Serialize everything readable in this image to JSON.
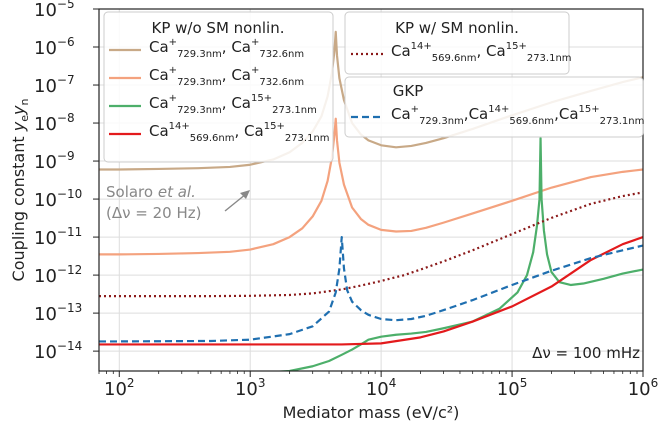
{
  "chart_data": {
    "type": "line",
    "xlabel": "Mediator mass (eV/c²)",
    "ylabel_main": "Coupling constant ",
    "ylabel_math": "y",
    "ylabel_sub1": "e",
    "ylabel_math2": "y",
    "ylabel_sub2": "n",
    "xscale": "log",
    "yscale": "log",
    "xlim": [
      70,
      1000000
    ],
    "ylim": [
      3e-15,
      1e-05
    ],
    "x_ticks": [
      {
        "value": 100,
        "base": "10",
        "exp": "2"
      },
      {
        "value": 1000,
        "base": "10",
        "exp": "3"
      },
      {
        "value": 10000,
        "base": "10",
        "exp": "4"
      },
      {
        "value": 100000,
        "base": "10",
        "exp": "5"
      },
      {
        "value": 1000000,
        "base": "10",
        "exp": "6"
      }
    ],
    "y_ticks": [
      {
        "value": 1e-14,
        "base": "10",
        "exp": "−14"
      },
      {
        "value": 1e-13,
        "base": "10",
        "exp": "−13"
      },
      {
        "value": 1e-12,
        "base": "10",
        "exp": "−12"
      },
      {
        "value": 1e-11,
        "base": "10",
        "exp": "−11"
      },
      {
        "value": 1e-10,
        "base": "10",
        "exp": "−10"
      },
      {
        "value": 1e-09,
        "base": "10",
        "exp": "−9"
      },
      {
        "value": 1e-08,
        "base": "10",
        "exp": "−8"
      },
      {
        "value": 1e-07,
        "base": "10",
        "exp": "−7"
      },
      {
        "value": 1e-06,
        "base": "10",
        "exp": "−6"
      },
      {
        "value": 1e-05,
        "base": "10",
        "exp": "−5"
      }
    ],
    "grid": true,
    "series": [
      {
        "key": "tan",
        "color": "#c8a987",
        "dash": "solid",
        "x": [
          70,
          100,
          200,
          400,
          700,
          1000,
          1500,
          2000,
          2500,
          3000,
          3500,
          3900,
          4200,
          4400,
          4500,
          4600,
          4800,
          5200,
          6000,
          7000,
          8000,
          10000,
          13000,
          17000,
          22000,
          30000,
          50000,
          100000,
          200000,
          400000,
          700000,
          1000000
        ],
        "y": [
          6e-10,
          6e-10,
          6.2e-10,
          6.5e-10,
          7e-10,
          8e-10,
          1.1e-09,
          1.7e-09,
          3e-09,
          6e-09,
          1.5e-08,
          5e-08,
          2e-07,
          8e-07,
          2.5e-06,
          6e-07,
          1.5e-07,
          4e-08,
          1e-08,
          5e-09,
          3.5e-09,
          2.6e-09,
          2.3e-09,
          2.5e-09,
          3e-09,
          4e-09,
          7e-09,
          1.6e-08,
          3.5e-08,
          7e-08,
          1.2e-07,
          1.6e-07
        ]
      },
      {
        "key": "salmon",
        "color": "#f4a27e",
        "dash": "solid",
        "x": [
          70,
          100,
          200,
          400,
          700,
          1000,
          1500,
          2000,
          2500,
          3000,
          3500,
          3900,
          4200,
          4400,
          4500,
          4600,
          4800,
          5200,
          6000,
          7000,
          8000,
          10000,
          13000,
          17000,
          22000,
          30000,
          50000,
          100000,
          200000,
          400000,
          700000,
          1000000
        ],
        "y": [
          3.5e-12,
          3.5e-12,
          3.6e-12,
          3.8e-12,
          4.1e-12,
          4.7e-12,
          6.5e-12,
          1e-11,
          1.7e-11,
          3.5e-11,
          9e-11,
          3e-10,
          1.2e-09,
          5e-09,
          1.3e-08,
          3.5e-09,
          9e-10,
          2.4e-10,
          6e-11,
          3e-11,
          2.1e-11,
          1.55e-11,
          1.4e-11,
          1.45e-11,
          1.75e-11,
          2.4e-11,
          4.2e-11,
          9e-11,
          2e-10,
          3.8e-10,
          5.2e-10,
          6e-10
        ]
      },
      {
        "key": "green",
        "color": "#4daf6a",
        "dash": "solid",
        "x": [
          70,
          100,
          500,
          1000,
          2000,
          3000,
          4000,
          5000,
          6000,
          7000,
          8000,
          10000,
          13000,
          17000,
          22000,
          30000,
          50000,
          80000,
          110000,
          130000,
          145000,
          155000,
          162000,
          165000,
          168000,
          175000,
          185000,
          200000,
          230000,
          280000,
          350000,
          500000,
          700000,
          1000000
        ],
        "y": [
          2.5e-15,
          2.5e-15,
          2.5e-15,
          2.6e-15,
          3e-15,
          4e-15,
          5.5e-15,
          8e-15,
          1.1e-14,
          1.5e-14,
          2e-14,
          2.4e-14,
          2.7e-14,
          2.9e-14,
          3.2e-14,
          4e-14,
          6e-14,
          1.3e-13,
          3.5e-13,
          1e-12,
          4e-12,
          2e-11,
          1e-10,
          4e-09,
          1e-10,
          1.5e-11,
          3.5e-12,
          1.2e-12,
          6.5e-13,
          5.5e-13,
          6e-13,
          8e-13,
          1.1e-12,
          1.4e-12
        ]
      },
      {
        "key": "red",
        "color": "#e31a1c",
        "dash": "solid",
        "x": [
          70,
          100,
          1000,
          5000,
          10000,
          20000,
          30000,
          50000,
          100000,
          200000,
          400000,
          700000,
          1000000
        ],
        "y": [
          1.5e-14,
          1.5e-14,
          1.5e-14,
          1.5e-14,
          1.6e-14,
          2.3e-14,
          3.3e-14,
          6e-14,
          1.5e-13,
          5e-13,
          2.5e-12,
          6.5e-12,
          1e-11
        ]
      },
      {
        "key": "maroon",
        "color": "#8b1a1a",
        "dash": "dotted",
        "x": [
          70,
          100,
          500,
          1000,
          2000,
          3000,
          5000,
          7000,
          10000,
          15000,
          20000,
          30000,
          50000,
          100000,
          200000,
          400000,
          700000,
          1000000
        ],
        "y": [
          2.8e-13,
          2.8e-13,
          2.8e-13,
          2.85e-13,
          3e-13,
          3.3e-13,
          4.2e-13,
          5.3e-13,
          7e-13,
          1e-12,
          1.4e-12,
          2.3e-12,
          4.5e-12,
          1.2e-11,
          3.2e-11,
          7.5e-11,
          1.2e-10,
          1.5e-10
        ]
      },
      {
        "key": "blue",
        "color": "#1f6fb0",
        "dash": "dashed",
        "x": [
          70,
          100,
          500,
          1000,
          2000,
          3000,
          4000,
          4500,
          4800,
          5000,
          5200,
          5500,
          6000,
          7000,
          8000,
          10000,
          13000,
          17000,
          22000,
          30000,
          50000,
          100000,
          200000,
          400000,
          700000,
          1000000
        ],
        "y": [
          1.8e-14,
          1.8e-14,
          1.85e-14,
          2e-14,
          2.8e-14,
          4.5e-14,
          1.1e-13,
          3.5e-13,
          1.5e-12,
          1e-11,
          1.5e-12,
          4e-13,
          2e-13,
          1.2e-13,
          9e-14,
          7e-14,
          6.5e-14,
          7e-14,
          8.5e-14,
          1.2e-13,
          2.2e-13,
          5.5e-13,
          1.3e-12,
          2.8e-12,
          4.5e-12,
          6e-12
        ]
      }
    ],
    "legend1": {
      "title": "KP w/o SM nonlin.",
      "entries": [
        {
          "series": "tan",
          "a": "Ca",
          "a_sup": "+",
          "a_sub": "729.3nm",
          "sep": ", ",
          "b": "Ca",
          "b_sup": "+",
          "b_sub": "732.6nm"
        },
        {
          "series": "salmon",
          "a": "Ca",
          "a_sup": "+",
          "a_sub": "729.3nm",
          "sep": ", ",
          "b": "Ca",
          "b_sup": "+",
          "b_sub": "732.6nm"
        },
        {
          "series": "green",
          "a": "Ca",
          "a_sup": "+",
          "a_sub": "729.3nm",
          "sep": ", ",
          "b": "Ca",
          "b_sup": "15+",
          "b_sub": "273.1nm"
        },
        {
          "series": "red",
          "a": "Ca",
          "a_sup": "14+",
          "a_sub": "569.6nm",
          "sep": ", ",
          "b": "Ca",
          "b_sup": "15+",
          "b_sub": "273.1nm"
        }
      ]
    },
    "legend2": {
      "title": "KP w/ SM nonlin.",
      "entries": [
        {
          "series": "maroon",
          "a": "Ca",
          "a_sup": "14+",
          "a_sub": "569.6nm",
          "sep": ", ",
          "b": "Ca",
          "b_sup": "15+",
          "b_sub": "273.1nm"
        }
      ]
    },
    "legend3": {
      "title": "GKP",
      "entries": [
        {
          "series": "blue",
          "a": "Ca",
          "a_sup": "+",
          "a_sub": "729.3nm",
          "sep": ",",
          "b": "Ca",
          "b_sup": "14+",
          "b_sub": "569.6nm",
          "sep2": ",",
          "c": "Ca",
          "c_sup": "15+",
          "c_sub": "273.1nm"
        }
      ]
    },
    "annotation": {
      "line1_prefix": "Solaro ",
      "line1_italic": "et al.",
      "line2": "(Δν = 20 Hz)",
      "color": "#888888"
    },
    "dnu_label": "Δν = 100 mHz"
  }
}
